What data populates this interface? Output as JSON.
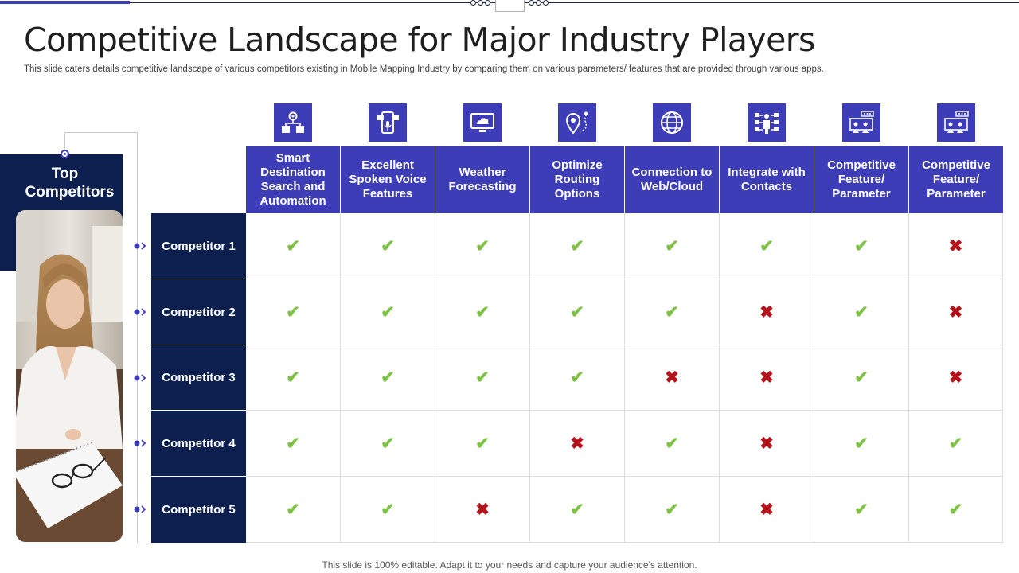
{
  "title": "Competitive Landscape for Major Industry Players",
  "subtitle": "This slide caters details competitive landscape of various competitors existing in Mobile Mapping Industry by comparing them on various parameters/ features that are provided through various apps.",
  "panel_title": "Top Competitors",
  "footer": "This slide is 100% editable. Adapt it to your needs and capture your audience's attention.",
  "colors": {
    "header_blue": "#3d3db8",
    "navy": "#0c1f4e",
    "check": "#7dc242",
    "cross": "#b5121b"
  },
  "columns": [
    {
      "label": "Smart Destination Search and Automation",
      "icon": "gear-network-icon"
    },
    {
      "label": "Excellent Spoken Voice Features",
      "icon": "voice-device-icon"
    },
    {
      "label": "Weather Forecasting",
      "icon": "weather-monitor-icon"
    },
    {
      "label": "Optimize Routing Options",
      "icon": "route-pin-icon"
    },
    {
      "label": "Connection to Web/Cloud",
      "icon": "globe-icon"
    },
    {
      "label": "Integrate with Contacts",
      "icon": "contacts-network-icon"
    },
    {
      "label": "Competitive Feature/ Parameter",
      "icon": "team-board-icon"
    },
    {
      "label": "Competitive Feature/ Parameter",
      "icon": "team-board-icon"
    }
  ],
  "rows": [
    {
      "label": "Competitor 1",
      "values": [
        true,
        true,
        true,
        true,
        true,
        true,
        true,
        false
      ]
    },
    {
      "label": "Competitor 2",
      "values": [
        true,
        true,
        true,
        true,
        true,
        false,
        true,
        false
      ]
    },
    {
      "label": "Competitor 3",
      "values": [
        true,
        true,
        true,
        true,
        false,
        false,
        true,
        false
      ]
    },
    {
      "label": "Competitor 4",
      "values": [
        true,
        true,
        true,
        false,
        true,
        false,
        true,
        true
      ]
    },
    {
      "label": "Competitor 5",
      "values": [
        true,
        true,
        false,
        true,
        true,
        false,
        true,
        true
      ]
    }
  ],
  "marks": {
    "yes": "✔",
    "no": "✖"
  }
}
